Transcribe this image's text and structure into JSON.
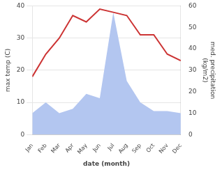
{
  "chart_data": {
    "type": "line",
    "categories": [
      "Jan",
      "Feb",
      "Mar",
      "Apr",
      "May",
      "Jun",
      "Jul",
      "Aug",
      "Sep",
      "Oct",
      "Nov",
      "Dec"
    ],
    "series": [
      {
        "type": "area",
        "axis": "y2",
        "color": "#b3c6f0",
        "values": [
          10,
          15,
          10,
          12,
          19,
          17,
          57,
          25,
          15,
          11,
          11,
          10
        ]
      },
      {
        "type": "line",
        "axis": "y",
        "color": "#cc3333",
        "values": [
          18,
          25,
          30,
          37,
          35,
          39,
          38,
          37,
          31,
          31,
          25,
          23
        ]
      }
    ],
    "xlabel": "date (month)",
    "ylabel": "max temp (C)",
    "y2label": "med. precipitation\n(kg/m2)",
    "ylim": [
      0,
      40
    ],
    "yticks": [
      0,
      10,
      20,
      30,
      40
    ],
    "y2lim": [
      0,
      60
    ],
    "y2ticks": [
      0,
      10,
      20,
      30,
      40,
      50,
      60
    ],
    "grid": true
  }
}
